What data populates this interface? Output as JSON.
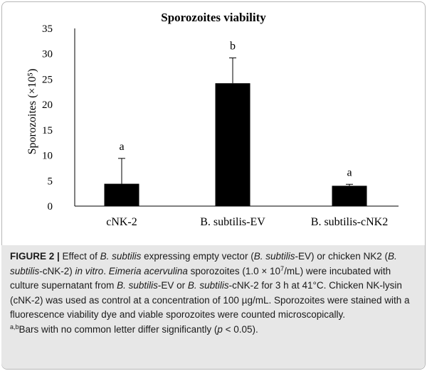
{
  "chart_data": {
    "type": "bar",
    "title": "Sporozoites  viability",
    "ylabel": "Sporozoites (×10⁵)",
    "ylim": [
      0,
      35
    ],
    "yticks": [
      0,
      5,
      10,
      15,
      20,
      25,
      30,
      35
    ],
    "categories": [
      "cNK-2",
      "B. subtilis-EV",
      "B. subtilis-cNK2"
    ],
    "values": [
      4.4,
      24.2,
      4.0
    ],
    "error_bars": [
      5.0,
      5.0,
      0.3
    ],
    "significance_letters": [
      "a",
      "b",
      "a"
    ],
    "bar_color": "#000000"
  },
  "caption": {
    "label": "FIGURE 2 |",
    "part1": " Effect of ",
    "it1": "B. subtilis",
    "part2": " expressing empty vector (",
    "it2": "B. subtilis",
    "part3": "-EV) or chicken NK2 (",
    "it3": "B. subtilis",
    "part4": "-cNK-2) ",
    "it4": "in vitro",
    "part5": ". ",
    "it5": "Eimeria acervulina",
    "part6": " sporozoites (1.0 × 10",
    "sup1": "7",
    "part7": "/mL) were incubated with culture supernatant from ",
    "it6": "B. subtilis",
    "part8": "-EV or ",
    "it7": "B. subtilis",
    "part9": "-cNK-2 for 3 h at 41°C. Chicken NK-lysin (cNK-2) was used as control at a concentration of 100 µg/mL. Sporozoites were stained with a fluorescence viability dye and viable sporozoites were counted microscopically.",
    "sup2": "a,b",
    "part10": "Bars with no common letter differ significantly (",
    "it8": "p",
    "part11": " < 0.05)."
  }
}
